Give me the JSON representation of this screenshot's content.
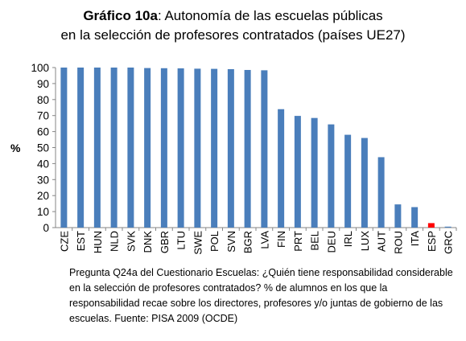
{
  "chart_data": {
    "type": "bar",
    "title_bold": "Gráfico 10a",
    "title_rest": ": Autonomía de las escuelas públicas",
    "subtitle": "en la selección de profesores contratados  (países UE27)",
    "xlabel": "",
    "ylabel": "%",
    "ylim": [
      0,
      100
    ],
    "yticks": [
      0,
      10,
      20,
      30,
      40,
      50,
      60,
      70,
      80,
      90,
      100
    ],
    "grid": false,
    "legend": "none",
    "bar_color": "#4a7ebb",
    "highlight_color": "#ff0000",
    "highlight_category": "ESP",
    "categories": [
      "CZE",
      "EST",
      "HUN",
      "NLD",
      "SVK",
      "DNK",
      "GBR",
      "LTU",
      "SWE",
      "POL",
      "SVN",
      "BGR",
      "LVA",
      "FIN",
      "PRT",
      "BEL",
      "DEU",
      "IRL",
      "LUX",
      "AUT",
      "ROU",
      "ITA",
      "ESP",
      "GRC"
    ],
    "values": [
      100,
      100,
      100,
      100,
      100,
      99.7,
      99.6,
      99.5,
      99.3,
      99.2,
      99,
      98.5,
      98.3,
      74,
      69.8,
      68.5,
      64.5,
      58,
      56,
      44,
      14.5,
      12.8,
      2.8,
      0.6
    ]
  },
  "footnote": "Pregunta Q24a  del Cuestionario Escuelas: ¿Quién tiene responsabilidad considerable en la selección de profesores contratados? % de alumnos en los que la responsabilidad recae sobre los directores, profesores y/o juntas de gobierno de las escuelas.  Fuente: PISA 2009  (OCDE)"
}
